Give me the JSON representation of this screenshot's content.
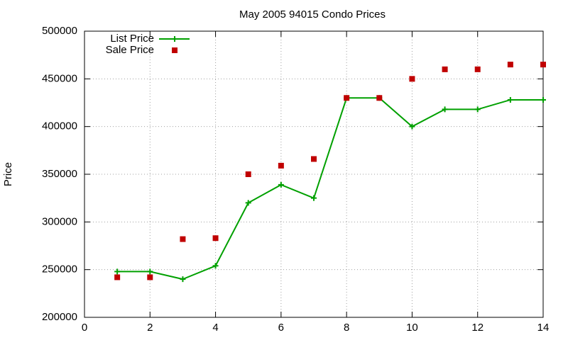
{
  "chart_data": {
    "type": "line",
    "title": "May 2005 94015 Condo Prices",
    "y_label": "Price",
    "x": [
      1,
      2,
      3,
      4,
      5,
      6,
      7,
      8,
      9,
      10,
      11,
      12,
      13,
      14
    ],
    "series": [
      {
        "name": "List Price",
        "color": "#00a000",
        "mode": "lines+markers",
        "values": [
          248000,
          248000,
          240000,
          254000,
          320000,
          339000,
          325000,
          430000,
          430000,
          400000,
          418000,
          418000,
          428000,
          428000
        ]
      },
      {
        "name": "Sale Price",
        "color": "#c00000",
        "mode": "markers",
        "values": [
          242000,
          242000,
          282000,
          283000,
          350000,
          359000,
          366000,
          430000,
          430000,
          450000,
          460000,
          460000,
          465000,
          465000
        ]
      }
    ],
    "xlim": [
      0,
      14
    ],
    "xticks": [
      0,
      2,
      4,
      6,
      8,
      10,
      12,
      14
    ],
    "ylim": [
      200000,
      500000
    ],
    "yticks": [
      200000,
      250000,
      300000,
      350000,
      400000,
      450000,
      500000
    ],
    "grid": true,
    "legend": "top-left"
  }
}
